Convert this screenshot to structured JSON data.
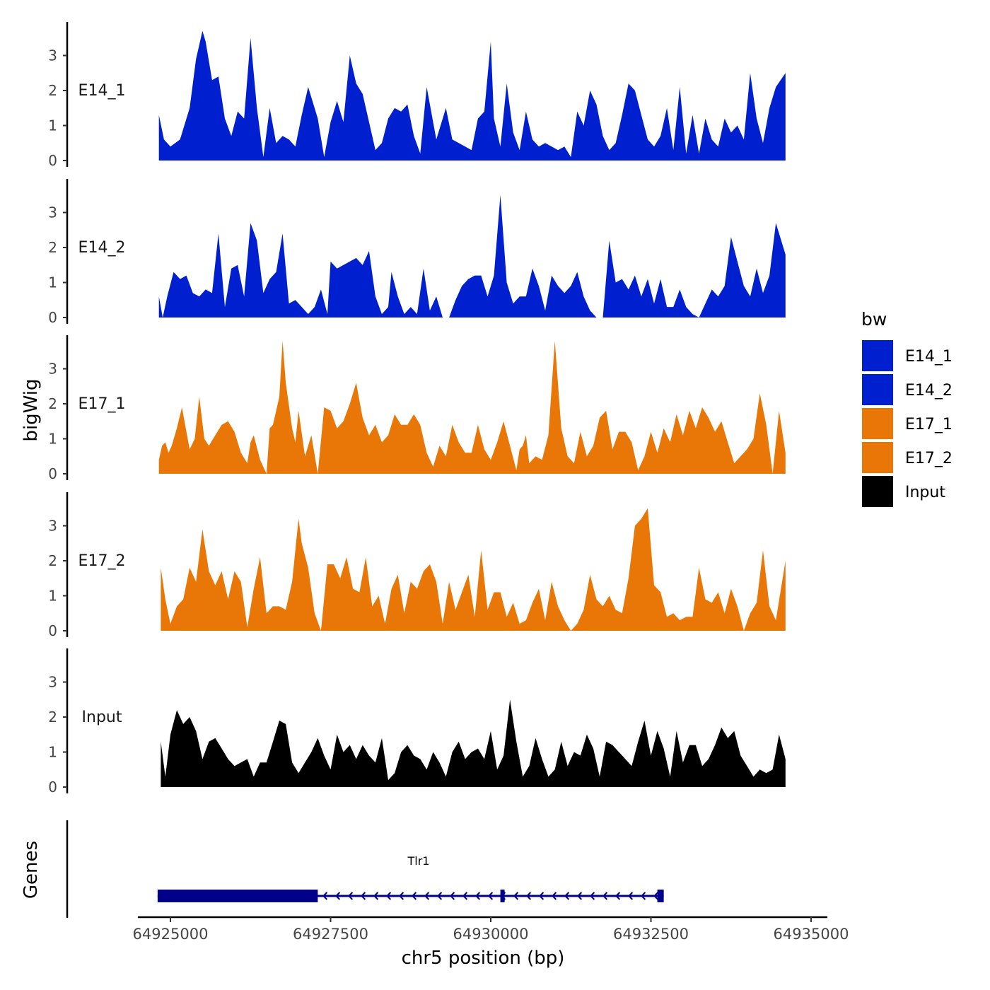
{
  "chart_data": {
    "type": "area",
    "genome": {
      "chrom": "chr5",
      "xlim": [
        64924800,
        64934600
      ],
      "xlabel": "chr5 position (bp)",
      "x_ticks": [
        64925000,
        64927500,
        64930000,
        64932500,
        64935000
      ],
      "x_tick_labels": [
        "64925000",
        "64927500",
        "64930000",
        "64932500",
        "64935000"
      ]
    },
    "ylabel": "bigWig",
    "ylim": [
      0,
      4
    ],
    "y_ticks": [
      0,
      1,
      2,
      3
    ],
    "y_tick_labels": [
      "0",
      "1",
      "2",
      "3"
    ],
    "legend": {
      "title": "bw",
      "position": "right",
      "entries": [
        {
          "label": "E14_1",
          "color": "#0020d0"
        },
        {
          "label": "E14_2",
          "color": "#0020d0"
        },
        {
          "label": "E17_1",
          "color": "#e87707"
        },
        {
          "label": "E17_2",
          "color": "#e87707"
        },
        {
          "label": "Input",
          "color": "#000000"
        }
      ]
    },
    "series": [
      {
        "name": "E14_1",
        "color": "#0020d0",
        "x": [
          64924820,
          64924900,
          64925000,
          64925150,
          64925300,
          64925400,
          64925500,
          64925550,
          64925650,
          64925750,
          64925850,
          64925950,
          64926050,
          64926150,
          64926250,
          64926350,
          64926450,
          64926550,
          64926650,
          64926750,
          64926850,
          64926950,
          64927050,
          64927150,
          64927300,
          64927400,
          64927500,
          64927600,
          64927700,
          64927800,
          64927900,
          64928000,
          64928100,
          64928200,
          64928300,
          64928400,
          64928500,
          64928600,
          64928700,
          64928800,
          64928900,
          64929000,
          64929150,
          64929300,
          64929400,
          64929500,
          64929600,
          64929700,
          64929800,
          64929900,
          64930000,
          64930050,
          64930150,
          64930250,
          64930350,
          64930450,
          64930550,
          64930650,
          64930750,
          64930850,
          64930950,
          64931050,
          64931150,
          64931250,
          64931350,
          64931450,
          64931550,
          64931650,
          64931750,
          64931850,
          64931950,
          64932050,
          64932150,
          64932250,
          64932350,
          64932450,
          64932550,
          64932650,
          64932750,
          64932850,
          64932950,
          64933050,
          64933150,
          64933250,
          64933350,
          64933450,
          64933550,
          64933650,
          64933750,
          64933850,
          64933950,
          64934050,
          64934150,
          64934250,
          64934350,
          64934450,
          64934600
        ],
        "y": [
          1.3,
          0.6,
          0.4,
          0.6,
          1.5,
          2.9,
          3.7,
          3.4,
          2.3,
          2.4,
          1.2,
          0.7,
          1.4,
          1.2,
          3.5,
          1.5,
          0.1,
          1.5,
          0.5,
          0.7,
          0.6,
          0.4,
          1.3,
          2.1,
          1.2,
          0.1,
          1.1,
          1.7,
          1.1,
          3.0,
          2.2,
          1.9,
          1.1,
          0.3,
          0.5,
          1.2,
          1.5,
          1.4,
          1.6,
          0.7,
          0.2,
          2.1,
          0.6,
          1.5,
          0.6,
          0.5,
          0.4,
          0.3,
          1.2,
          1.4,
          3.4,
          1.2,
          0.4,
          2.2,
          0.8,
          0.3,
          1.4,
          0.6,
          0.4,
          0.5,
          0.4,
          0.3,
          0.4,
          0.1,
          1.4,
          1.0,
          2.0,
          1.6,
          0.7,
          0.3,
          0.5,
          1.3,
          2.2,
          2.0,
          1.3,
          0.6,
          0.4,
          0.7,
          1.5,
          0.3,
          2.1,
          0.2,
          1.3,
          0.2,
          1.2,
          0.6,
          0.4,
          1.2,
          0.8,
          1.0,
          0.6,
          2.5,
          1.2,
          0.5,
          1.5,
          2.1,
          2.5
        ]
      },
      {
        "name": "E14_2",
        "color": "#0020d0",
        "x": [
          64924820,
          64924880,
          64924950,
          64925050,
          64925150,
          64925250,
          64925350,
          64925450,
          64925550,
          64925650,
          64925750,
          64925850,
          64925950,
          64926050,
          64926150,
          64926250,
          64926350,
          64926450,
          64926550,
          64926650,
          64926750,
          64926850,
          64926950,
          64927050,
          64927150,
          64927250,
          64927350,
          64927450,
          64927500,
          64927600,
          64927700,
          64927800,
          64927900,
          64928000,
          64928100,
          64928200,
          64928300,
          64928400,
          64928450,
          64928550,
          64928650,
          64928750,
          64928850,
          64928950,
          64929050,
          64929150,
          64929250,
          64929350,
          64929450,
          64929550,
          64929650,
          64929750,
          64929850,
          64929950,
          64930050,
          64930150,
          64930250,
          64930350,
          64930450,
          64930550,
          64930650,
          64930750,
          64930850,
          64930950,
          64931050,
          64931150,
          64931250,
          64931350,
          64931450,
          64931550,
          64931650,
          64931750,
          64931850,
          64931950,
          64932050,
          64932150,
          64932250,
          64932350,
          64932450,
          64932550,
          64932650,
          64932750,
          64932850,
          64932950,
          64933050,
          64933150,
          64933250,
          64933350,
          64933450,
          64933550,
          64933650,
          64933750,
          64933850,
          64933950,
          64934050,
          64934150,
          64934250,
          64934350,
          64934450,
          64934600
        ],
        "y": [
          0.6,
          0.0,
          0.6,
          1.3,
          1.1,
          1.2,
          0.7,
          0.6,
          0.8,
          0.7,
          2.4,
          0.3,
          1.4,
          1.5,
          0.6,
          2.7,
          2.2,
          0.7,
          1.1,
          1.3,
          2.4,
          0.4,
          0.5,
          0.3,
          0.1,
          0.3,
          0.8,
          0.1,
          1.6,
          1.4,
          1.5,
          1.6,
          1.7,
          1.5,
          1.9,
          0.6,
          0.1,
          0.3,
          1.3,
          0.6,
          0.1,
          0.3,
          0.1,
          1.4,
          0.2,
          0.6,
          0.0,
          0.0,
          0.5,
          0.9,
          1.1,
          1.2,
          1.2,
          0.6,
          1.2,
          3.5,
          1.0,
          0.4,
          0.6,
          0.6,
          1.4,
          0.9,
          0.2,
          1.2,
          0.9,
          0.7,
          0.9,
          1.3,
          0.6,
          0.2,
          0.0,
          0.0,
          2.2,
          1.0,
          1.1,
          0.8,
          1.2,
          0.6,
          1.1,
          0.4,
          1.1,
          0.3,
          0.3,
          0.8,
          0.3,
          0.1,
          0.0,
          0.4,
          0.8,
          0.6,
          0.9,
          2.3,
          1.6,
          0.9,
          0.6,
          1.4,
          0.7,
          1.2,
          2.7,
          1.8
        ]
      },
      {
        "name": "E17_1",
        "color": "#e87707",
        "x": [
          64924820,
          64924870,
          64924920,
          64924970,
          64925020,
          64925100,
          64925180,
          64925250,
          64925300,
          64925380,
          64925450,
          64925530,
          64925600,
          64925700,
          64925800,
          64925900,
          64926000,
          64926100,
          64926200,
          64926250,
          64926300,
          64926400,
          64926500,
          64926550,
          64926600,
          64926700,
          64926750,
          64926800,
          64926900,
          64926950,
          64927000,
          64927100,
          64927200,
          64927300,
          64927400,
          64927500,
          64927600,
          64927700,
          64927800,
          64927900,
          64928000,
          64928100,
          64928200,
          64928300,
          64928400,
          64928500,
          64928600,
          64928700,
          64928800,
          64928900,
          64929000,
          64929100,
          64929200,
          64929300,
          64929400,
          64929500,
          64929600,
          64929700,
          64929800,
          64929900,
          64930000,
          64930100,
          64930200,
          64930300,
          64930400,
          64930450,
          64930500,
          64930550,
          64930600,
          64930700,
          64930800,
          64930900,
          64931000,
          64931100,
          64931200,
          64931300,
          64931400,
          64931500,
          64931600,
          64931700,
          64931800,
          64931900,
          64932000,
          64932100,
          64932200,
          64932300,
          64932400,
          64932500,
          64932600,
          64932700,
          64932800,
          64932900,
          64933000,
          64933100,
          64933200,
          64933300,
          64933400,
          64933500,
          64933600,
          64933700,
          64933800,
          64933900,
          64934000,
          64934100,
          64934200,
          64934300,
          64934400,
          64934500,
          64934600
        ],
        "y": [
          0.4,
          0.8,
          0.9,
          0.6,
          0.8,
          1.3,
          1.9,
          1.2,
          0.7,
          1.0,
          2.2,
          1.0,
          0.8,
          1.1,
          1.4,
          1.5,
          1.2,
          0.6,
          0.3,
          0.9,
          1.1,
          0.4,
          0.0,
          1.3,
          1.4,
          2.2,
          3.8,
          2.6,
          1.3,
          0.9,
          1.8,
          0.5,
          1.1,
          0.0,
          1.9,
          1.8,
          1.3,
          1.5,
          2.0,
          2.6,
          1.6,
          1.1,
          1.4,
          0.9,
          1.1,
          1.7,
          1.4,
          1.4,
          1.7,
          1.4,
          0.6,
          0.2,
          0.8,
          0.5,
          1.4,
          0.9,
          0.6,
          0.6,
          1.4,
          0.7,
          0.4,
          0.9,
          1.5,
          0.8,
          0.1,
          0.7,
          0.8,
          1.1,
          0.3,
          0.5,
          0.4,
          1.1,
          3.8,
          1.3,
          0.5,
          0.3,
          1.2,
          0.5,
          0.8,
          1.6,
          1.8,
          0.7,
          1.2,
          1.2,
          0.9,
          0.1,
          0.5,
          1.2,
          0.6,
          1.3,
          0.9,
          1.7,
          1.1,
          1.8,
          1.3,
          1.9,
          1.6,
          1.2,
          1.5,
          0.9,
          0.3,
          0.5,
          0.7,
          1.0,
          2.3,
          1.4,
          0.0,
          1.8,
          0.6
        ]
      },
      {
        "name": "E17_2",
        "color": "#e87707",
        "x": [
          64924850,
          64924920,
          64925000,
          64925100,
          64925200,
          64925300,
          64925400,
          64925500,
          64925600,
          64925700,
          64925800,
          64925900,
          64926000,
          64926100,
          64926200,
          64926300,
          64926400,
          64926500,
          64926600,
          64926700,
          64926800,
          64926900,
          64927000,
          64927050,
          64927150,
          64927250,
          64927350,
          64927450,
          64927550,
          64927650,
          64927750,
          64927850,
          64927950,
          64928050,
          64928150,
          64928250,
          64928350,
          64928450,
          64928550,
          64928650,
          64928750,
          64928850,
          64928950,
          64929050,
          64929150,
          64929250,
          64929350,
          64929450,
          64929550,
          64929650,
          64929750,
          64929850,
          64929950,
          64930050,
          64930150,
          64930250,
          64930350,
          64930450,
          64930550,
          64930650,
          64930750,
          64930850,
          64930950,
          64931050,
          64931150,
          64931250,
          64931350,
          64931450,
          64931550,
          64931650,
          64931750,
          64931850,
          64931950,
          64932050,
          64932150,
          64932250,
          64932350,
          64932450,
          64932550,
          64932650,
          64932750,
          64932850,
          64932950,
          64933050,
          64933150,
          64933250,
          64933350,
          64933450,
          64933550,
          64933650,
          64933750,
          64933850,
          64933950,
          64934050,
          64934150,
          64934250,
          64934350,
          64934450,
          64934600
        ],
        "y": [
          1.8,
          0.9,
          0.2,
          0.7,
          0.9,
          1.8,
          1.4,
          2.9,
          1.7,
          1.3,
          1.7,
          0.9,
          1.7,
          1.4,
          0.1,
          1.2,
          2.1,
          0.5,
          0.7,
          0.7,
          0.6,
          1.4,
          3.2,
          2.5,
          1.8,
          0.5,
          0.0,
          1.9,
          1.9,
          1.5,
          2.1,
          1.2,
          1.1,
          2.1,
          0.7,
          1.0,
          0.2,
          1.2,
          1.6,
          0.5,
          1.4,
          1.2,
          1.7,
          1.9,
          1.4,
          0.2,
          1.4,
          0.6,
          1.1,
          1.6,
          0.4,
          2.3,
          0.6,
          1.1,
          1.1,
          0.4,
          0.8,
          0.2,
          0.3,
          0.8,
          1.2,
          0.3,
          1.4,
          0.7,
          0.3,
          0.0,
          0.2,
          0.6,
          1.6,
          0.9,
          0.7,
          1.0,
          0.6,
          0.5,
          1.5,
          3.0,
          3.2,
          3.5,
          1.3,
          1.1,
          0.4,
          0.5,
          0.3,
          0.4,
          0.4,
          1.8,
          0.9,
          0.8,
          1.1,
          0.5,
          1.2,
          0.7,
          0.0,
          0.5,
          0.8,
          2.3,
          0.7,
          0.3,
          2.0
        ]
      },
      {
        "name": "Input",
        "color": "#000000",
        "x": [
          64924850,
          64924920,
          64925000,
          64925100,
          64925200,
          64925300,
          64925400,
          64925500,
          64925600,
          64925700,
          64925800,
          64925900,
          64926000,
          64926100,
          64926200,
          64926300,
          64926400,
          64926500,
          64926600,
          64926700,
          64926800,
          64926900,
          64927000,
          64927100,
          64927200,
          64927300,
          64927400,
          64927500,
          64927600,
          64927700,
          64927800,
          64927900,
          64928000,
          64928100,
          64928200,
          64928300,
          64928400,
          64928500,
          64928600,
          64928700,
          64928800,
          64928900,
          64929000,
          64929100,
          64929200,
          64929300,
          64929400,
          64929500,
          64929600,
          64929700,
          64929800,
          64929900,
          64930000,
          64930100,
          64930200,
          64930300,
          64930400,
          64930500,
          64930600,
          64930700,
          64930800,
          64930900,
          64931000,
          64931100,
          64931200,
          64931300,
          64931400,
          64931500,
          64931600,
          64931700,
          64931800,
          64931900,
          64932000,
          64932100,
          64932200,
          64932300,
          64932400,
          64932500,
          64932600,
          64932700,
          64932800,
          64932900,
          64933000,
          64933100,
          64933200,
          64933300,
          64933400,
          64933500,
          64933600,
          64933700,
          64933800,
          64933900,
          64934000,
          64934100,
          64934200,
          64934300,
          64934400,
          64934500,
          64934600
        ],
        "y": [
          1.3,
          0.3,
          1.5,
          2.2,
          1.8,
          2.0,
          1.6,
          0.8,
          1.3,
          1.4,
          1.1,
          0.8,
          0.6,
          0.7,
          0.8,
          0.3,
          0.7,
          0.7,
          1.3,
          1.9,
          1.8,
          0.7,
          0.4,
          0.7,
          1.0,
          1.4,
          0.9,
          0.5,
          1.5,
          1.0,
          1.2,
          0.8,
          1.2,
          0.9,
          0.7,
          1.4,
          0.2,
          0.4,
          1.0,
          1.2,
          0.9,
          0.8,
          0.5,
          1.0,
          0.7,
          0.3,
          1.0,
          1.3,
          0.8,
          1.0,
          1.1,
          0.8,
          1.6,
          0.5,
          0.9,
          2.5,
          1.3,
          0.3,
          0.6,
          1.4,
          0.8,
          0.3,
          0.5,
          1.3,
          0.6,
          1.0,
          0.9,
          1.5,
          1.1,
          0.3,
          1.3,
          1.2,
          1.0,
          0.8,
          0.6,
          1.3,
          1.9,
          0.9,
          1.6,
          1.1,
          0.3,
          1.6,
          0.7,
          1.2,
          1.2,
          0.6,
          0.8,
          1.2,
          1.7,
          1.4,
          1.6,
          0.9,
          0.6,
          0.3,
          0.5,
          0.4,
          0.5,
          1.5,
          0.8
        ]
      }
    ],
    "genes": {
      "panel_label": "Genes",
      "items": [
        {
          "name": "Tlr1",
          "strand": "-",
          "start": 64924800,
          "end": 64932700,
          "exons": [
            {
              "start": 64924800,
              "end": 64927300
            },
            {
              "start": 64930150,
              "end": 64930200
            },
            {
              "start": 64932600,
              "end": 64932700
            }
          ],
          "color": "#00008b"
        }
      ]
    }
  }
}
